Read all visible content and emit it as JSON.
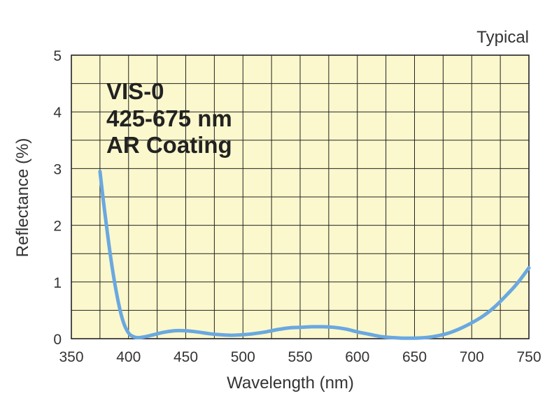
{
  "chart_data": {
    "type": "line",
    "title": "",
    "note": "Typical",
    "annotation": [
      "VIS-0",
      "425-675 nm",
      "AR Coating"
    ],
    "xlabel": "Wavelength (nm)",
    "ylabel": "Reflectance (%)",
    "xlim": [
      350,
      750
    ],
    "ylim": [
      0,
      5
    ],
    "xticks": [
      350,
      400,
      450,
      500,
      550,
      600,
      650,
      700,
      750
    ],
    "yticks": [
      0,
      1,
      2,
      3,
      4,
      5
    ],
    "grid": true,
    "legend": "none",
    "series": [
      {
        "x": [
          375,
          380,
          385,
          390,
          395,
          400,
          405,
          410,
          420,
          430,
          440,
          450,
          460,
          470,
          480,
          490,
          500,
          510,
          520,
          530,
          540,
          550,
          560,
          570,
          580,
          590,
          600,
          610,
          620,
          630,
          640,
          650,
          660,
          670,
          680,
          690,
          700,
          710,
          720,
          730,
          740,
          750
        ],
        "y": [
          2.95,
          2.1,
          1.35,
          0.75,
          0.32,
          0.1,
          0.03,
          0.02,
          0.06,
          0.11,
          0.14,
          0.14,
          0.12,
          0.09,
          0.07,
          0.06,
          0.07,
          0.09,
          0.12,
          0.16,
          0.19,
          0.2,
          0.21,
          0.21,
          0.2,
          0.17,
          0.12,
          0.08,
          0.04,
          0.02,
          0.01,
          0.01,
          0.02,
          0.05,
          0.1,
          0.18,
          0.28,
          0.4,
          0.56,
          0.76,
          0.98,
          1.25
        ]
      }
    ]
  },
  "colors": {
    "plot_background": "#fbf8cd",
    "grid": "#222222",
    "line": "#6aa8e0",
    "text": "#333333"
  }
}
